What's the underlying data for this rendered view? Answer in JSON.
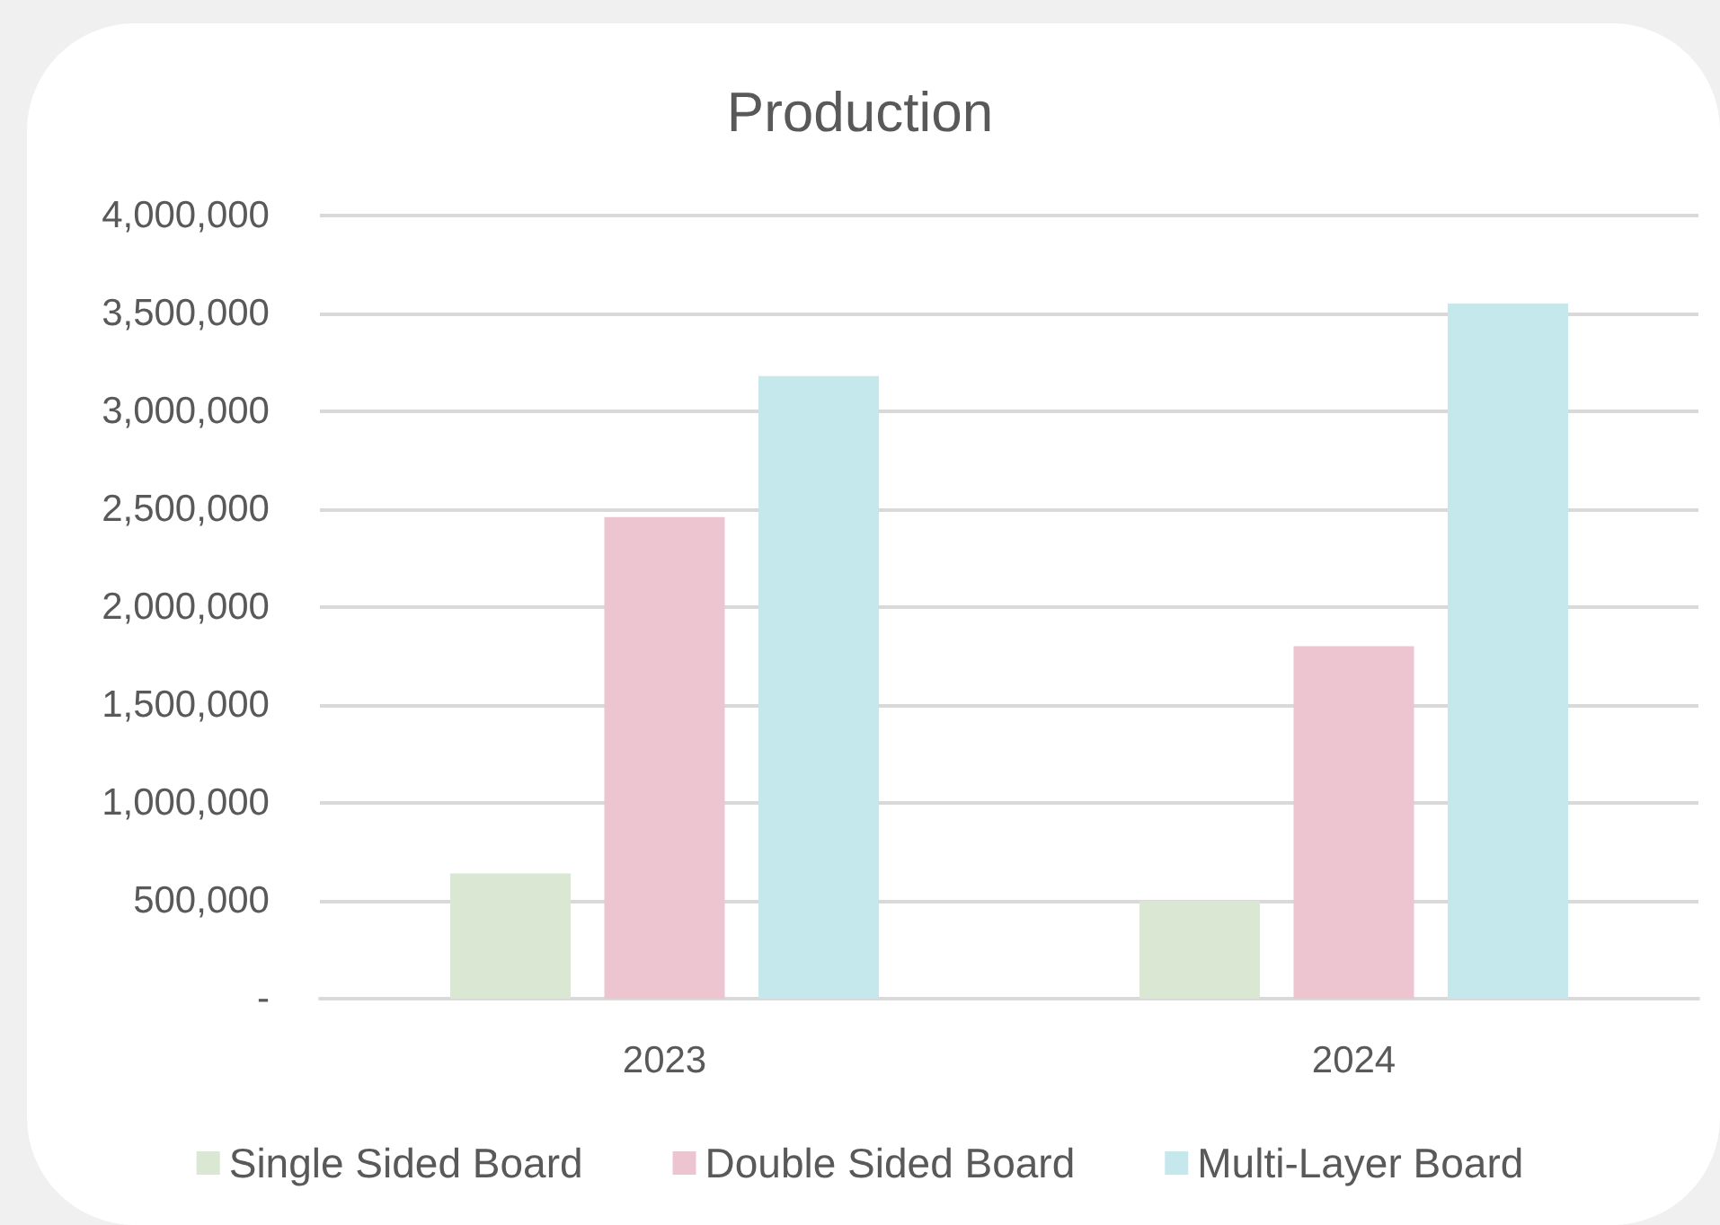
{
  "chart_data": {
    "type": "bar",
    "title": "Production",
    "categories": [
      "2023",
      "2024"
    ],
    "series": [
      {
        "name": "Single Sided Board",
        "color": "#d9e7d3",
        "values": [
          640000,
          500000
        ]
      },
      {
        "name": "Double Sided Board",
        "color": "#ecc5d1",
        "values": [
          2460000,
          1800000
        ]
      },
      {
        "name": "Multi-Layer Board",
        "color": "#c5e8ec",
        "values": [
          3180000,
          3550000
        ]
      }
    ],
    "ylim": [
      0,
      4000000
    ],
    "yticks": [
      {
        "value": 0,
        "label": "-"
      },
      {
        "value": 500000,
        "label": "500,000"
      },
      {
        "value": 1000000,
        "label": "1,000,000"
      },
      {
        "value": 1500000,
        "label": "1,500,000"
      },
      {
        "value": 2000000,
        "label": "2,000,000"
      },
      {
        "value": 2500000,
        "label": "2,500,000"
      },
      {
        "value": 3000000,
        "label": "3,000,000"
      },
      {
        "value": 3500000,
        "label": "3,500,000"
      },
      {
        "value": 4000000,
        "label": "4,000,000"
      }
    ],
    "grid": true,
    "legend": "bottom"
  }
}
